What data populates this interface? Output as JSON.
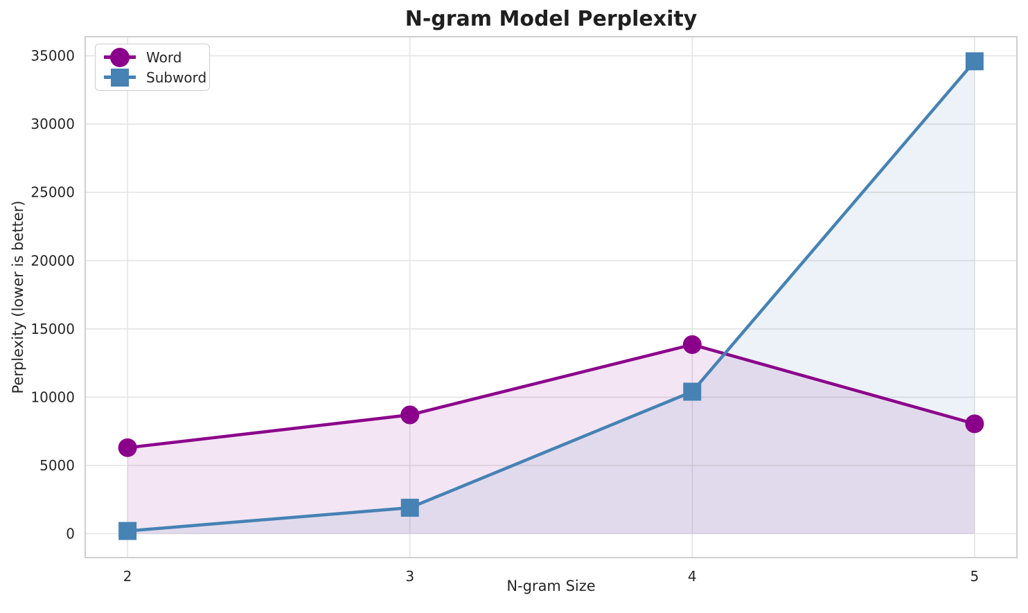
{
  "chart_data": {
    "type": "line",
    "title": "N-gram Model Perplexity",
    "xlabel": "N-gram Size",
    "ylabel": "Perplexity (lower is better)",
    "x": [
      2,
      3,
      4,
      5
    ],
    "series": [
      {
        "name": "Word",
        "marker": "circle",
        "color": "#8B008B",
        "values": [
          6300,
          8700,
          13850,
          8050
        ]
      },
      {
        "name": "Subword",
        "marker": "square",
        "color": "#4682B4",
        "values": [
          200,
          1900,
          10400,
          34600
        ]
      }
    ],
    "fill_to_baseline": true,
    "fill_baseline": 0,
    "fill_alpha": 0.1,
    "x_ticks": [
      "2",
      "3",
      "4",
      "5"
    ],
    "x_tick_values": [
      2,
      3,
      4,
      5
    ],
    "y_ticks": [
      "0",
      "5000",
      "10000",
      "15000",
      "20000",
      "25000",
      "30000",
      "35000"
    ],
    "y_tick_values": [
      0,
      5000,
      10000,
      15000,
      20000,
      25000,
      30000,
      35000
    ],
    "xlim": [
      1.85,
      5.15
    ],
    "ylim": [
      -1750,
      36400
    ],
    "grid": true,
    "legend_position": "upper left",
    "colors": {
      "grid": "#E4E4E4",
      "spine": "#CFCFCF",
      "text": "#262626",
      "background": "#FFFFFF"
    }
  }
}
